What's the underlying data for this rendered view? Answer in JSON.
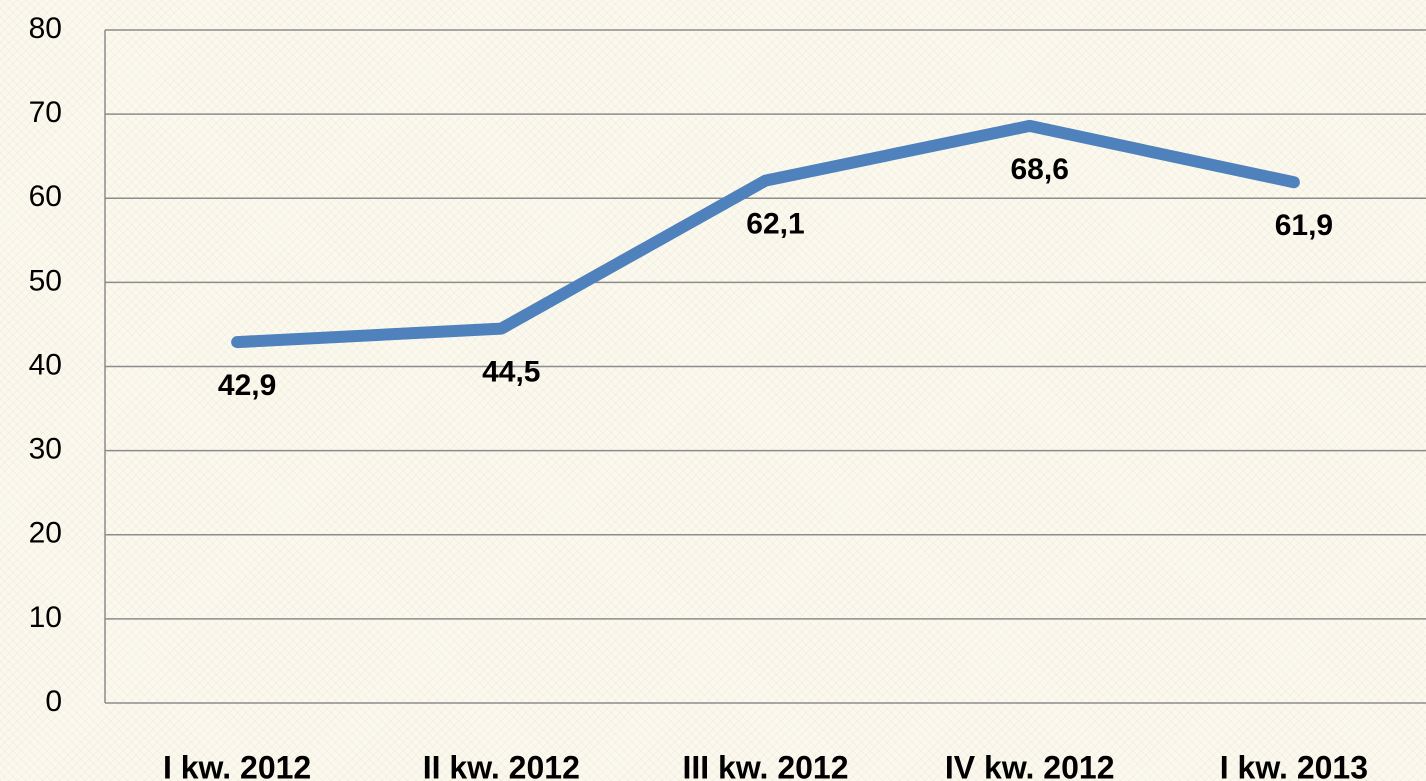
{
  "chart_data": {
    "type": "line",
    "categories": [
      "I kw. 2012",
      "II kw. 2012",
      "III kw. 2012",
      "IV kw. 2012",
      "I kw. 2013"
    ],
    "series": [
      {
        "color": "#4f81bd",
        "values": [
          42.9,
          44.5,
          62.1,
          68.6,
          61.9
        ],
        "value_labels": [
          "42,9",
          "44,5",
          "62,1",
          "68,6",
          "61,9"
        ]
      }
    ],
    "ylim": [
      0,
      80
    ],
    "yticks": [
      0,
      10,
      20,
      30,
      40,
      50,
      60,
      70,
      80
    ],
    "grid": true
  }
}
